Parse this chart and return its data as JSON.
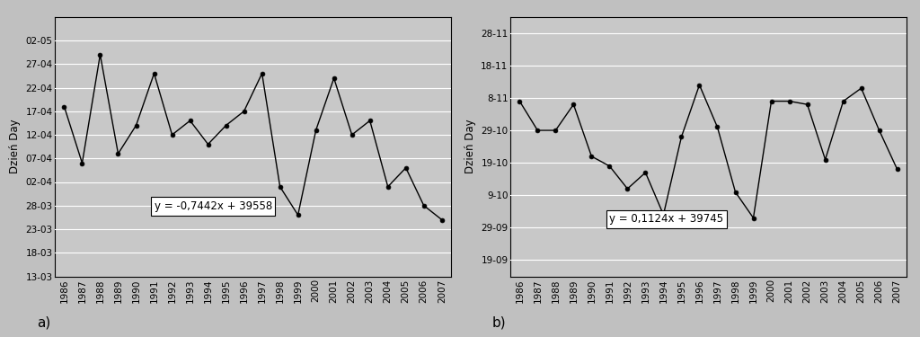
{
  "years": [
    1986,
    1987,
    1988,
    1989,
    1990,
    1991,
    1992,
    1993,
    1994,
    1995,
    1996,
    1997,
    1998,
    1999,
    2000,
    2001,
    2002,
    2003,
    2004,
    2005,
    2006,
    2007
  ],
  "chart_a_days": [
    108,
    96,
    119,
    98,
    104,
    115,
    102,
    105,
    100,
    104,
    107,
    115,
    91,
    85,
    103,
    114,
    102,
    105,
    91,
    95,
    87,
    84
  ],
  "chart_b_days": [
    311,
    302,
    302,
    310,
    294,
    291,
    284,
    289,
    276,
    300,
    316,
    303,
    283,
    275,
    311,
    311,
    310,
    293,
    311,
    315,
    302,
    290
  ],
  "chart_a_yticks_labels": [
    "02-05",
    "27-04",
    "22-04",
    "17-04",
    "12-04",
    "07-04",
    "02-04",
    "28-03",
    "23-03",
    "18-03",
    "13-03"
  ],
  "chart_a_yticks_days": [
    122,
    117,
    112,
    107,
    102,
    97,
    92,
    87,
    82,
    77,
    72
  ],
  "chart_b_yticks_labels": [
    "28-11",
    "18-11",
    "8-11",
    "29-10",
    "19-10",
    "9-10",
    "29-09",
    "19-09"
  ],
  "chart_b_yticks_days": [
    332,
    322,
    312,
    302,
    292,
    282,
    272,
    262
  ],
  "chart_a_slope": -0.7442,
  "chart_a_intercept": 39558,
  "chart_b_slope": 0.1124,
  "chart_b_intercept": 39745,
  "chart_a_eq": "y = -0,7442x + 39558",
  "chart_b_eq": "y = 0,1124x + 39745",
  "ylabel": "Dzień Day",
  "label_a": "a)",
  "label_b": "b)",
  "plot_bg_color": "#c8c8c8",
  "fig_bg_color": "#c0c0c0",
  "line_color": "#000000",
  "trend_color": "#000000",
  "grid_color": "#ffffff",
  "spine_color": "#000000",
  "chart_a_ylim": [
    72,
    127
  ],
  "chart_b_ylim": [
    257,
    337
  ],
  "xlim": [
    1985.5,
    2007.5
  ]
}
